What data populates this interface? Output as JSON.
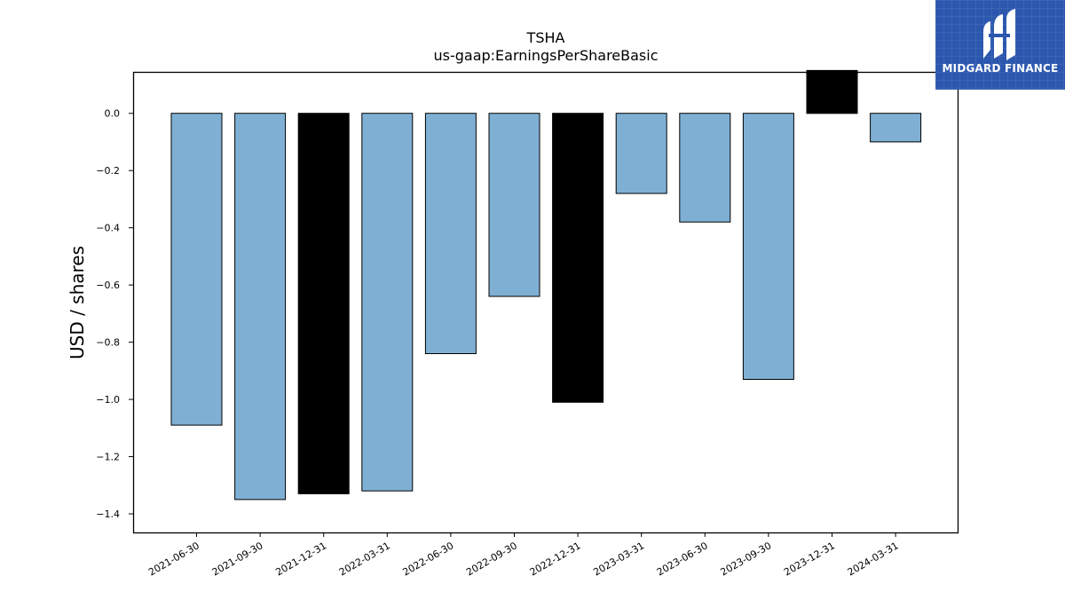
{
  "chart_data": {
    "type": "bar",
    "title": "TSHA",
    "subtitle": "us-gaap:EarningsPerShareBasic",
    "xlabel": "",
    "ylabel": "USD / shares",
    "categories": [
      "2021-06-30",
      "2021-09-30",
      "2021-12-31",
      "2022-03-31",
      "2022-06-30",
      "2022-09-30",
      "2022-12-31",
      "2023-03-31",
      "2023-06-30",
      "2023-09-30",
      "2023-12-31",
      "2024-03-31"
    ],
    "values": [
      -1.09,
      -1.35,
      -1.33,
      -1.32,
      -0.84,
      -0.64,
      -1.01,
      -0.28,
      -0.38,
      -0.93,
      0.15,
      -0.1
    ],
    "highlight": [
      false,
      false,
      true,
      false,
      false,
      false,
      true,
      false,
      false,
      false,
      true,
      false
    ],
    "colors": {
      "default": "#7fb0d4",
      "highlight": "#000000",
      "edge": "#000000"
    },
    "ylim": [
      -1.465,
      0.145
    ],
    "yticks": [
      0.0,
      -0.2,
      -0.4,
      -0.6,
      -0.8,
      -1.0,
      -1.2,
      -1.4
    ],
    "ytick_labels": [
      "0.0",
      "−0.2",
      "−0.4",
      "−0.6",
      "−0.8",
      "−1.0",
      "−1.2",
      "−1.4"
    ],
    "grid": false,
    "legend": "none"
  },
  "logo": {
    "text": "MIDGARD FINANCE",
    "icon": "midgard-logo-icon",
    "background": "#2b57ae"
  }
}
